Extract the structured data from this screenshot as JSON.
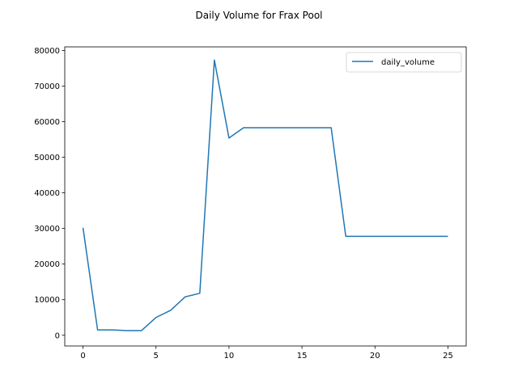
{
  "chart_data": {
    "type": "line",
    "title": "Daily Volume for Frax Pool",
    "xlabel": "",
    "ylabel": "",
    "xlim": [
      -1.25,
      26.25
    ],
    "ylim": [
      -3000,
      81000
    ],
    "xticks": [
      0,
      5,
      10,
      15,
      20,
      25
    ],
    "yticks": [
      0,
      10000,
      20000,
      30000,
      40000,
      50000,
      60000,
      70000,
      80000
    ],
    "grid": false,
    "legend_position": "top-right",
    "series": [
      {
        "name": "daily_volume",
        "color": "#1f77b4",
        "x": [
          0,
          1,
          2,
          3,
          4,
          5,
          6,
          7,
          8,
          9,
          10,
          11,
          12,
          13,
          14,
          15,
          16,
          17,
          18,
          19,
          20,
          21,
          22,
          23,
          24,
          25
        ],
        "y": [
          30200,
          1500,
          1500,
          1300,
          1300,
          5000,
          7000,
          10800,
          11800,
          77300,
          55400,
          58300,
          58300,
          58300,
          58300,
          58300,
          58300,
          58300,
          27800,
          27800,
          27800,
          27800,
          27800,
          27800,
          27800,
          27800
        ]
      }
    ]
  }
}
